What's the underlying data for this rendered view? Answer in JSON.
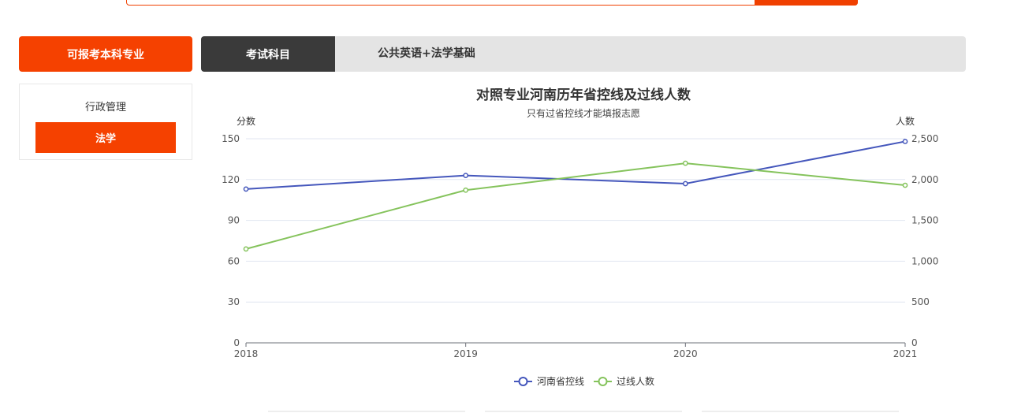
{
  "tabs": {
    "left_tab_label": "可报考本科专业",
    "exam_label": "考试科目",
    "exam_value": "公共英语+法学基础"
  },
  "majors": {
    "items": [
      "行政管理"
    ],
    "active": "法学"
  },
  "colors": {
    "accent": "#f54100",
    "dark_tab": "#3a3a3a",
    "series1": "#4557bc",
    "series2": "#85c35c"
  },
  "chart_data": {
    "type": "line",
    "title": "对照专业河南历年省控线及过线人数",
    "subtitle": "只有过省控线才能填报志愿",
    "y_left_label": "分数",
    "y_right_label": "人数",
    "x": [
      "2018",
      "2019",
      "2020",
      "2021"
    ],
    "ylim_left": [
      0,
      150
    ],
    "ylim_right": [
      0,
      2500
    ],
    "left_ticks": [
      0,
      30,
      60,
      90,
      120,
      150
    ],
    "right_ticks": [
      0,
      500,
      1000,
      1500,
      2000,
      2500
    ],
    "right_tick_labels": [
      "0",
      "500",
      "1,000",
      "1,500",
      "2,000",
      "2,500"
    ],
    "grid": true,
    "legend_position": "bottom",
    "series": [
      {
        "name": "河南省控线",
        "axis": "left",
        "values": [
          113,
          123,
          117,
          148
        ]
      },
      {
        "name": "过线人数",
        "axis": "right",
        "values": [
          1150,
          1870,
          2200,
          1930
        ]
      }
    ]
  }
}
